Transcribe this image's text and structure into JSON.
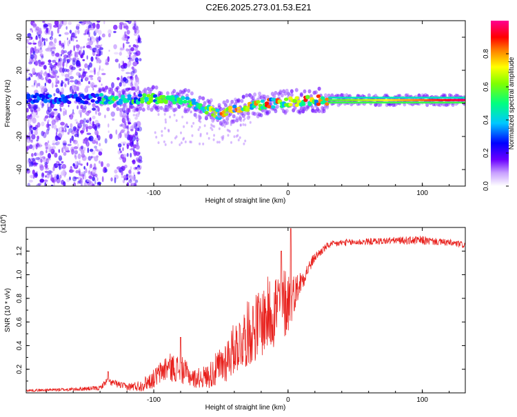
{
  "figure_title": "C2E6.2025.273.01.53.E21",
  "chart_data": [
    {
      "type": "heatmap",
      "title": "C2E6.2025.273.01.53.E21",
      "xlabel": "Height of straight line (km)",
      "ylabel": "Frequency (Hz)",
      "xlim": [
        -195,
        132
      ],
      "ylim": [
        -50,
        50
      ],
      "xticks": [
        -100,
        0,
        100
      ],
      "xtick_labels": [
        "-100",
        "0",
        "100"
      ],
      "yticks": [
        -40,
        -20,
        0,
        20,
        40
      ],
      "ytick_labels": [
        "-40",
        "-20",
        "0",
        "20",
        "40"
      ],
      "colorbar": {
        "label": "Normalized spectral amplitude",
        "range": [
          0,
          1
        ],
        "ticks": [
          0.0,
          0.2,
          0.4,
          0.6,
          0.8
        ],
        "tick_labels": [
          "0.0",
          "0.2",
          "0.4",
          "0.6",
          "0.8"
        ],
        "colormap": [
          "#ffffff",
          "#7b00ff",
          "#0000ff",
          "#00ffff",
          "#00ff00",
          "#ffff00",
          "#ff8000",
          "#ff0000",
          "#ff00a0"
        ]
      },
      "ridge": {
        "description_free_points_km_hz": [
          [
            -140,
            3
          ],
          [
            -120,
            2
          ],
          [
            -100,
            3
          ],
          [
            -80,
            2
          ],
          [
            -70,
            0
          ],
          [
            -60,
            -4
          ],
          [
            -50,
            -7
          ],
          [
            -40,
            -4
          ],
          [
            -30,
            -2
          ],
          [
            -15,
            0
          ],
          [
            0,
            1
          ],
          [
            20,
            2
          ],
          [
            60,
            2
          ],
          [
            100,
            2
          ],
          [
            132,
            2
          ]
        ]
      }
    },
    {
      "type": "line",
      "xlabel": "Height of straight line (km)",
      "ylabel": "SNR (10 * v/v)",
      "scale_label": "(x10",
      "scale_exponent": "4",
      "scale_close": ")",
      "xlim": [
        -195,
        132
      ],
      "ylim": [
        0,
        1.4
      ],
      "xticks": [
        -100,
        0,
        100
      ],
      "xtick_labels": [
        "-100",
        "0",
        "100"
      ],
      "yticks": [
        0.2,
        0.4,
        0.6,
        0.8,
        1.0,
        1.2
      ],
      "ytick_labels": [
        "0.2",
        "0.4",
        "0.6",
        "0.8",
        "1.0",
        "1.2"
      ],
      "series": [
        {
          "name": "SNR",
          "color": "#e8201c",
          "envelope_km": [
            -195,
            -160,
            -140,
            -135,
            -120,
            -110,
            -100,
            -90,
            -80,
            -70,
            -60,
            -50,
            -40,
            -30,
            -20,
            -10,
            0,
            5,
            10,
            15,
            20,
            30,
            40,
            60,
            80,
            100,
            110,
            120,
            132
          ],
          "envelope_values": [
            0.02,
            0.03,
            0.04,
            0.1,
            0.05,
            0.06,
            0.12,
            0.22,
            0.2,
            0.12,
            0.14,
            0.22,
            0.38,
            0.5,
            0.6,
            0.72,
            0.78,
            0.85,
            0.95,
            1.05,
            1.15,
            1.25,
            1.27,
            1.28,
            1.29,
            1.29,
            1.28,
            1.27,
            1.25
          ],
          "noise_amplitude_values": [
            0.01,
            0.015,
            0.02,
            0.03,
            0.03,
            0.05,
            0.08,
            0.12,
            0.12,
            0.08,
            0.1,
            0.18,
            0.22,
            0.28,
            0.3,
            0.35,
            0.3,
            0.15,
            0.1,
            0.06,
            0.04,
            0.03,
            0.03,
            0.03,
            0.03,
            0.04,
            0.03,
            0.03,
            0.03
          ],
          "spikes": [
            [
              -134,
              0.18
            ],
            [
              -80,
              0.47
            ],
            [
              2,
              1.39
            ],
            [
              -5,
              1.2
            ]
          ]
        }
      ]
    }
  ]
}
